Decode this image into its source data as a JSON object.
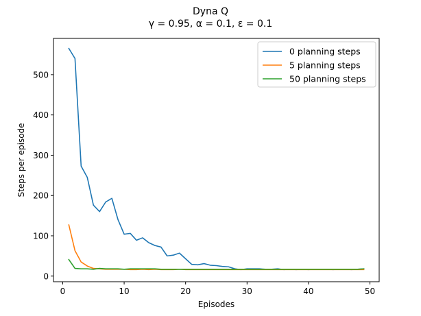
{
  "chart_data": {
    "type": "line",
    "title": "Dyna Q",
    "subtitle": "γ = 0.95, α = 0.1, ε = 0.1",
    "xlabel": "Episodes",
    "ylabel": "Steps per episode",
    "xlim": [
      -1.5,
      51.5
    ],
    "ylim": [
      -14,
      590
    ],
    "xticks": [
      0,
      10,
      20,
      30,
      40,
      50
    ],
    "yticks": [
      0,
      100,
      200,
      300,
      400,
      500
    ],
    "grid": false,
    "legend_position": "top-right",
    "x": [
      1,
      2,
      3,
      4,
      5,
      6,
      7,
      8,
      9,
      10,
      11,
      12,
      13,
      14,
      15,
      16,
      17,
      18,
      19,
      20,
      21,
      22,
      23,
      24,
      25,
      26,
      27,
      28,
      29,
      30,
      31,
      32,
      33,
      34,
      35,
      36,
      37,
      38,
      39,
      40,
      41,
      42,
      43,
      44,
      45,
      46,
      47,
      48,
      49
    ],
    "series": [
      {
        "name": "0 planning steps",
        "color": "#1f77b4",
        "values": [
          565,
          540,
          273,
          245,
          176,
          160,
          184,
          193,
          140,
          104,
          106,
          89,
          95,
          83,
          76,
          72,
          50,
          52,
          57,
          43,
          29,
          28,
          31,
          27,
          26,
          24,
          23,
          18,
          16,
          18,
          18,
          18,
          17,
          17,
          18,
          16,
          17,
          16,
          17,
          16,
          17,
          17,
          17,
          16,
          17,
          17,
          16,
          17,
          18
        ]
      },
      {
        "name": "5 planning steps",
        "color": "#ff7f0e",
        "values": [
          127,
          63,
          35,
          25,
          19,
          18,
          17,
          17,
          17,
          17,
          16,
          16,
          17,
          16,
          17,
          16,
          16,
          16,
          17,
          16,
          16,
          16,
          16,
          16,
          16,
          16,
          16,
          16,
          16,
          16,
          16,
          16,
          16,
          16,
          16,
          16,
          16,
          16,
          16,
          16,
          16,
          16,
          16,
          16,
          16,
          16,
          16,
          16,
          16
        ]
      },
      {
        "name": "50 planning steps",
        "color": "#2ca02c",
        "values": [
          41,
          19,
          18,
          18,
          17,
          19,
          18,
          18,
          18,
          17,
          18,
          18,
          18,
          18,
          18,
          17,
          17,
          17,
          17,
          17,
          17,
          17,
          17,
          17,
          17,
          17,
          17,
          17,
          17,
          17,
          17,
          17,
          17,
          17,
          17,
          17,
          17,
          17,
          17,
          17,
          17,
          17,
          17,
          17,
          17,
          17,
          17,
          17,
          18
        ]
      }
    ]
  }
}
